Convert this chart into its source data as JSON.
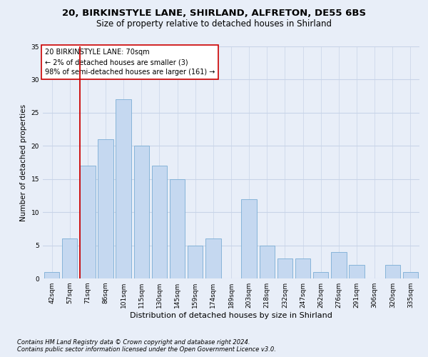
{
  "title1": "20, BIRKINSTYLE LANE, SHIRLAND, ALFRETON, DE55 6BS",
  "title2": "Size of property relative to detached houses in Shirland",
  "xlabel": "Distribution of detached houses by size in Shirland",
  "ylabel": "Number of detached properties",
  "categories": [
    "42sqm",
    "57sqm",
    "71sqm",
    "86sqm",
    "101sqm",
    "115sqm",
    "130sqm",
    "145sqm",
    "159sqm",
    "174sqm",
    "189sqm",
    "203sqm",
    "218sqm",
    "232sqm",
    "247sqm",
    "262sqm",
    "276sqm",
    "291sqm",
    "306sqm",
    "320sqm",
    "335sqm"
  ],
  "values": [
    1,
    6,
    17,
    21,
    27,
    20,
    17,
    15,
    5,
    6,
    0,
    12,
    5,
    3,
    3,
    1,
    4,
    2,
    0,
    2,
    1
  ],
  "bar_color": "#c5d8f0",
  "bar_edge_color": "#7aadd4",
  "grid_color": "#c8d4e8",
  "bg_color": "#e8eef8",
  "vline_color": "#cc0000",
  "vline_x_index": 2,
  "annotation_lines": [
    "20 BIRKINSTYLE LANE: 70sqm",
    "← 2% of detached houses are smaller (3)",
    "98% of semi-detached houses are larger (161) →"
  ],
  "annotation_box_color": "#ffffff",
  "annotation_box_edge": "#cc0000",
  "ylim": [
    0,
    35
  ],
  "yticks": [
    0,
    5,
    10,
    15,
    20,
    25,
    30,
    35
  ],
  "footnote1": "Contains HM Land Registry data © Crown copyright and database right 2024.",
  "footnote2": "Contains public sector information licensed under the Open Government Licence v3.0.",
  "title1_fontsize": 9.5,
  "title2_fontsize": 8.5,
  "xlabel_fontsize": 8,
  "ylabel_fontsize": 7.5,
  "tick_fontsize": 6.5,
  "annotation_fontsize": 7,
  "footnote_fontsize": 6
}
